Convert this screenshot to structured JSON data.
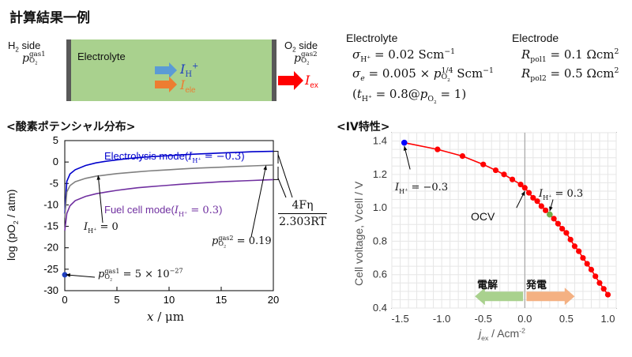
{
  "page_title": "計算結果一例",
  "schematic": {
    "left_side": "H2 side",
    "left_pressure": "p_O2^gas1",
    "right_side": "O2 side",
    "right_pressure": "p_O2^gas2",
    "box_label": "Electrolyte",
    "flux_h": "I_H+",
    "flux_ele": "I_ele",
    "current_ex": "I_ex",
    "colors": {
      "electrolyte": "#a9d18e",
      "electrode": "#595959",
      "h_arrow": "#5b9bd5",
      "ele_arrow": "#ed7d31",
      "ex_arrow": "#ff0000",
      "ele_text": "#ed7d31",
      "ex_text": "#ff0000",
      "h_text": "#1f3fbf"
    }
  },
  "parameters": {
    "electrolyte_heading": "Electrolyte",
    "sigma_h": "σH+ = 0.02 Scm⁻¹",
    "sigma_e": "σe = 0.005 × pO2^(1/4) Scm⁻¹",
    "t_h": "(tH+ = 0.8@pO2 = 1)",
    "electrode_heading": "Electrode",
    "r_pol1": "Rpol1 = 0.1 Ωcm²",
    "r_pol2": "Rpol2 = 0.5 Ωcm²"
  },
  "left_section_title": "<酸素ポテンシャル分布>",
  "right_section_title": "<IV特性>",
  "chart_data": [
    {
      "type": "line",
      "xlabel": "x / μm",
      "ylabel": "log (pO2 / atm)",
      "xlim": [
        0,
        20
      ],
      "ylim": [
        -30,
        5
      ],
      "xticks": [
        0,
        5,
        10,
        15,
        20
      ],
      "yticks": [
        5,
        0,
        -5,
        -10,
        -15,
        -20,
        -25,
        -30
      ],
      "grid": false,
      "series": [
        {
          "name": "Electrolysis mode(IH+ = −0.3)",
          "color": "#0000cc",
          "x": [
            0,
            0.2,
            0.5,
            1,
            2,
            3,
            4,
            5,
            6,
            7,
            8,
            9,
            10,
            11,
            12,
            13,
            14,
            15,
            16,
            17,
            18,
            19,
            20
          ],
          "y": [
            -12,
            -4.5,
            -2.8,
            -1.8,
            -0.8,
            -0.2,
            0.2,
            0.5,
            0.8,
            1.0,
            1.2,
            1.35,
            1.5,
            1.65,
            1.8,
            1.9,
            2.0,
            2.1,
            2.2,
            2.3,
            2.4,
            2.45,
            2.5
          ]
        },
        {
          "name": "IH+ = 0",
          "color": "#808080",
          "x": [
            0,
            0.2,
            0.5,
            1,
            2,
            3,
            4,
            5,
            6,
            7,
            8,
            9,
            10,
            11,
            12,
            13,
            14,
            15,
            16,
            17,
            18,
            19,
            20
          ],
          "y": [
            -13,
            -7,
            -5.5,
            -4.6,
            -3.8,
            -3.3,
            -3.0,
            -2.7,
            -2.5,
            -2.3,
            -2.1,
            -1.95,
            -1.8,
            -1.65,
            -1.5,
            -1.4,
            -1.3,
            -1.2,
            -1.1,
            -1.0,
            -0.9,
            -0.8,
            -0.7
          ]
        },
        {
          "name": "Fuel cell mode(IH+ = 0.3)",
          "color": "#7030a0",
          "x": [
            0,
            0.2,
            0.5,
            1,
            2,
            3,
            4,
            5,
            6,
            7,
            8,
            9,
            10,
            11,
            12,
            13,
            14,
            15,
            16,
            17,
            18,
            19,
            20
          ],
          "y": [
            -16,
            -12,
            -10.2,
            -9,
            -8,
            -7.4,
            -7.0,
            -6.6,
            -6.3,
            -6.0,
            -5.8,
            -5.6,
            -5.4,
            -5.2,
            -5.05,
            -4.9,
            -4.75,
            -4.6,
            -4.5,
            -4.4,
            -4.3,
            -4.2,
            -4.1
          ]
        }
      ],
      "points": [
        {
          "x": 0,
          "y": -26.3,
          "color": "#1f3fbf"
        }
      ],
      "annotations": {
        "electrolysis": "Electrolysis mode(IH+ = −0.3)",
        "zero": "IH+ = 0",
        "fuel": "Fuel cell mode(IH+ = 0.3)",
        "gas2": "pO2^gas2 = 0.19",
        "gas1": "pO2^gas1 = 5 × 10⁻²⁷",
        "ratio_num": "4Fη",
        "ratio_den": "2.303RT"
      }
    },
    {
      "type": "line",
      "xlabel": "jex / Acm⁻²",
      "ylabel": "Cell voltage, Vcell / V",
      "xlim": [
        -1.5,
        1.0
      ],
      "ylim": [
        0.4,
        1.4
      ],
      "xticks": [
        -1.5,
        -1.0,
        -0.5,
        0.0,
        0.5,
        1.0
      ],
      "xtick_labels": [
        "-1.5",
        "-1.0",
        "-0.5",
        "0.0",
        "0.5",
        "1.0"
      ],
      "yticks": [
        0.4,
        0.6,
        0.8,
        1.0,
        1.2,
        1.4
      ],
      "ytick_labels": [
        "0.4",
        "0.6",
        "0.8",
        "1.0",
        "1.2",
        "1.4"
      ],
      "grid": true,
      "series": [
        {
          "name": "",
          "color": "#ff0000",
          "x": [
            -1.45,
            -1.05,
            -0.75,
            -0.5,
            -0.35,
            -0.25,
            -0.15,
            -0.05,
            0.0,
            0.05,
            0.1,
            0.15,
            0.2,
            0.25,
            0.3,
            0.35,
            0.4,
            0.45,
            0.5,
            0.55,
            0.6,
            0.65,
            0.7,
            0.75,
            0.8,
            0.85,
            0.9,
            0.95,
            1.0
          ],
          "y": [
            1.39,
            1.35,
            1.31,
            1.26,
            1.225,
            1.2,
            1.17,
            1.14,
            1.12,
            1.09,
            1.06,
            1.04,
            1.01,
            0.985,
            0.96,
            0.935,
            0.905,
            0.875,
            0.85,
            0.81,
            0.77,
            0.74,
            0.7,
            0.665,
            0.63,
            0.59,
            0.55,
            0.515,
            0.48
          ]
        }
      ],
      "highlight_points": [
        {
          "x": -1.45,
          "y": 1.39,
          "color": "#0000ff"
        },
        {
          "x": 0.3,
          "y": 0.96,
          "color": "#70ad47"
        }
      ],
      "annotations": {
        "ih_neg": "IH+ = −0.3",
        "ih_pos": "IH+ = 0.3",
        "ocv": "OCV",
        "electrolysis_label": "電解",
        "generation_label": "発電",
        "electrolysis_color": "#a9d18e",
        "generation_color": "#f4b183"
      }
    }
  ]
}
